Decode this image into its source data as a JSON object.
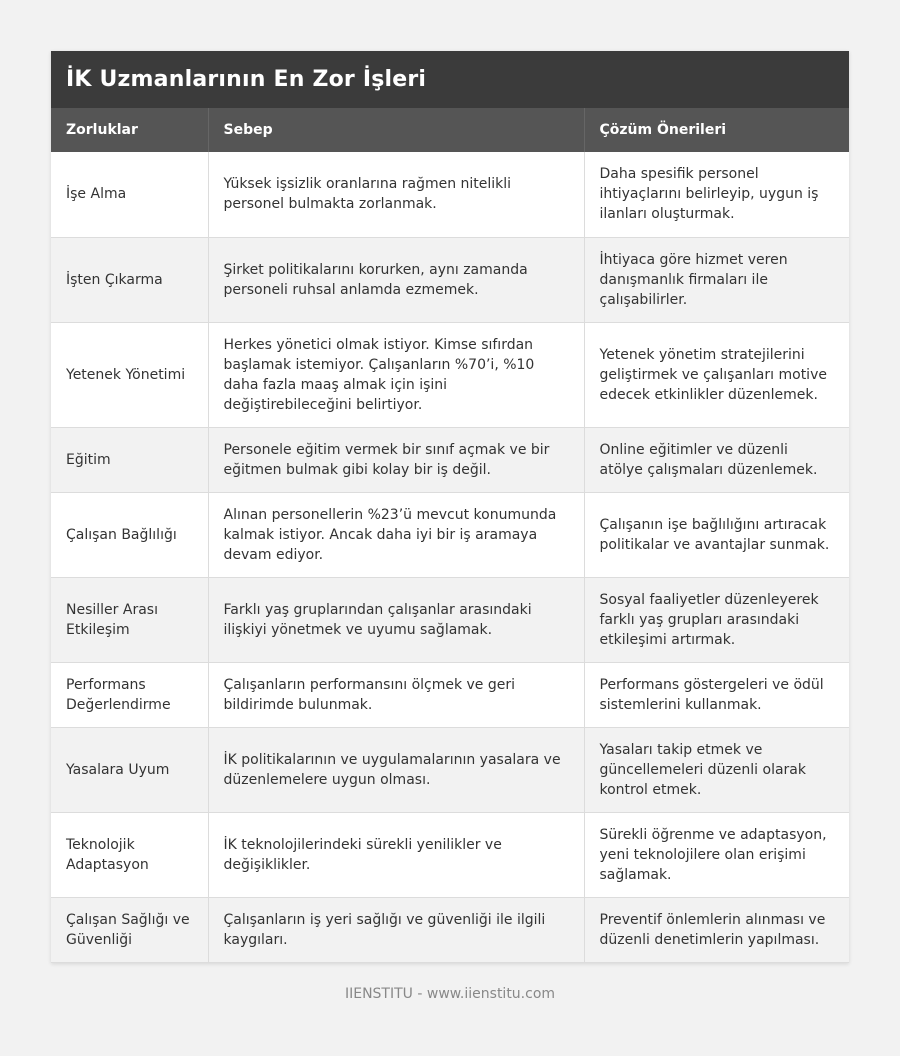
{
  "title": "İK Uzmanlarının En Zor İşleri",
  "columns": [
    "Zorluklar",
    "Sebep",
    "Çözüm Önerileri"
  ],
  "rows": [
    [
      "İşe Alma",
      "Yüksek işsizlik oranlarına rağmen nitelikli personel bulmakta zorlanmak.",
      "Daha spesifik personel ihtiyaçlarını belirleyip, uygun iş ilanları oluşturmak."
    ],
    [
      "İşten Çıkarma",
      "Şirket politikalarını korurken, aynı zamanda personeli ruhsal anlamda ezmemek.",
      "İhtiyaca göre hizmet veren danışmanlık firmaları ile çalışabilirler."
    ],
    [
      "Yetenek Yönetimi",
      "Herkes yönetici olmak istiyor. Kimse sıfırdan başlamak istemiyor. Çalışanların %70’i, %10 daha fazla maaş almak için işini değiştirebileceğini belirtiyor.",
      "Yetenek yönetim stratejilerini geliştirmek ve çalışanları motive edecek etkinlikler düzenlemek."
    ],
    [
      "Eğitim",
      "Personele eğitim vermek bir sınıf açmak ve bir eğitmen bulmak gibi kolay bir iş değil.",
      "Online eğitimler ve düzenli atölye çalışmaları düzenlemek."
    ],
    [
      "Çalışan Bağlılığı",
      "Alınan personellerin %23’ü mevcut konumunda kalmak istiyor. Ancak daha iyi bir iş aramaya devam ediyor.",
      "Çalışanın işe bağlılığını artıracak politikalar ve avantajlar sunmak."
    ],
    [
      "Nesiller Arası Etkileşim",
      "Farklı yaş gruplarından çalışanlar arasındaki ilişkiyi yönetmek ve uyumu sağlamak.",
      "Sosyal faaliyetler düzenleyerek farklı yaş grupları arasındaki etkileşimi artırmak."
    ],
    [
      "Performans Değerlendirme",
      "Çalışanların performansını ölçmek ve geri bildirimde bulunmak.",
      "Performans göstergeleri ve ödül sistemlerini kullanmak."
    ],
    [
      "Yasalara Uyum",
      "İK politikalarının ve uygulamalarının yasalara ve düzenlemelere uygun olması.",
      "Yasaları takip etmek ve güncellemeleri düzenli olarak kontrol etmek."
    ],
    [
      "Teknolojik Adaptasyon",
      "İK teknolojilerindeki sürekli yenilikler ve değişiklikler.",
      "Sürekli öğrenme ve adaptasyon, yeni teknolojilere olan erişimi sağlamak."
    ],
    [
      "Çalışan Sağlığı ve Güvenliği",
      "Çalışanların iş yeri sağlığı ve güvenliği ile ilgili kaygıları.",
      "Preventif önlemlerin alınması ve düzenli denetimlerin yapılması."
    ]
  ],
  "footer": "IIENSTITU - www.iienstitu.com"
}
